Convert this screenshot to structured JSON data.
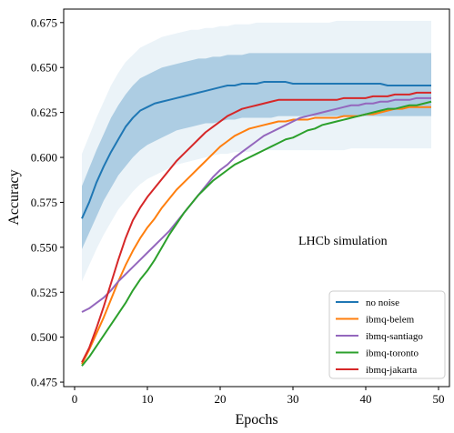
{
  "chart_data": {
    "type": "line",
    "xlabel": "Epochs",
    "ylabel": "Accuracy",
    "annotation": "LHCb simulation",
    "xlim": [
      -1.5,
      51.5
    ],
    "ylim": [
      0.4725,
      0.6825
    ],
    "xticks": [
      0,
      10,
      20,
      30,
      40,
      50
    ],
    "yticks": [
      0.475,
      0.5,
      0.525,
      0.55,
      0.575,
      0.6,
      0.625,
      0.65,
      0.675
    ],
    "ytick_labels": [
      "0.475",
      "0.500",
      "0.525",
      "0.550",
      "0.575",
      "0.600",
      "0.625",
      "0.650",
      "0.675"
    ],
    "legend_position": "lower-right",
    "x": [
      1,
      2,
      3,
      4,
      5,
      6,
      7,
      8,
      9,
      10,
      11,
      12,
      13,
      14,
      15,
      16,
      17,
      18,
      19,
      20,
      21,
      22,
      23,
      24,
      25,
      26,
      27,
      28,
      29,
      30,
      31,
      32,
      33,
      34,
      35,
      36,
      37,
      38,
      39,
      40,
      41,
      42,
      43,
      44,
      45,
      46,
      47,
      48,
      49
    ],
    "series": [
      {
        "name": "no noise",
        "color": "#1f77b4",
        "values": [
          0.566,
          0.575,
          0.586,
          0.595,
          0.603,
          0.61,
          0.617,
          0.622,
          0.626,
          0.628,
          0.63,
          0.631,
          0.632,
          0.633,
          0.634,
          0.635,
          0.636,
          0.637,
          0.638,
          0.639,
          0.64,
          0.64,
          0.641,
          0.641,
          0.641,
          0.642,
          0.642,
          0.642,
          0.642,
          0.641,
          0.641,
          0.641,
          0.641,
          0.641,
          0.641,
          0.641,
          0.641,
          0.641,
          0.641,
          0.641,
          0.641,
          0.641,
          0.64,
          0.64,
          0.64,
          0.64,
          0.64,
          0.64,
          0.64
        ],
        "band_inner": {
          "lower": [
            0.549,
            0.558,
            0.567,
            0.576,
            0.583,
            0.59,
            0.595,
            0.6,
            0.604,
            0.607,
            0.609,
            0.611,
            0.613,
            0.615,
            0.616,
            0.617,
            0.618,
            0.619,
            0.619,
            0.62,
            0.621,
            0.621,
            0.622,
            0.622,
            0.622,
            0.622,
            0.622,
            0.623,
            0.623,
            0.623,
            0.623,
            0.623,
            0.623,
            0.623,
            0.623,
            0.623,
            0.623,
            0.623,
            0.623,
            0.623,
            0.623,
            0.623,
            0.623,
            0.623,
            0.623,
            0.623,
            0.623,
            0.623,
            0.623
          ],
          "upper": [
            0.584,
            0.594,
            0.604,
            0.613,
            0.622,
            0.629,
            0.635,
            0.64,
            0.644,
            0.646,
            0.648,
            0.65,
            0.651,
            0.652,
            0.653,
            0.654,
            0.655,
            0.655,
            0.656,
            0.656,
            0.657,
            0.657,
            0.657,
            0.658,
            0.658,
            0.658,
            0.658,
            0.658,
            0.658,
            0.658,
            0.658,
            0.658,
            0.658,
            0.658,
            0.658,
            0.658,
            0.658,
            0.658,
            0.658,
            0.658,
            0.658,
            0.658,
            0.658,
            0.658,
            0.658,
            0.658,
            0.658,
            0.658,
            0.658
          ]
        },
        "band_outer": {
          "lower": [
            0.531,
            0.54,
            0.549,
            0.557,
            0.564,
            0.571,
            0.576,
            0.581,
            0.585,
            0.588,
            0.59,
            0.592,
            0.594,
            0.596,
            0.597,
            0.598,
            0.599,
            0.6,
            0.601,
            0.602,
            0.602,
            0.603,
            0.603,
            0.603,
            0.604,
            0.604,
            0.604,
            0.604,
            0.604,
            0.604,
            0.604,
            0.604,
            0.604,
            0.604,
            0.604,
            0.604,
            0.604,
            0.605,
            0.605,
            0.605,
            0.605,
            0.605,
            0.605,
            0.605,
            0.605,
            0.605,
            0.605,
            0.605,
            0.605
          ],
          "upper": [
            0.602,
            0.612,
            0.622,
            0.631,
            0.64,
            0.647,
            0.653,
            0.657,
            0.661,
            0.663,
            0.665,
            0.667,
            0.668,
            0.669,
            0.67,
            0.671,
            0.671,
            0.672,
            0.672,
            0.673,
            0.673,
            0.674,
            0.674,
            0.674,
            0.675,
            0.675,
            0.675,
            0.675,
            0.675,
            0.675,
            0.675,
            0.675,
            0.675,
            0.675,
            0.675,
            0.676,
            0.676,
            0.676,
            0.676,
            0.676,
            0.676,
            0.676,
            0.676,
            0.676,
            0.676,
            0.676,
            0.676,
            0.676,
            0.676
          ]
        }
      },
      {
        "name": "ibmq-belem",
        "color": "#ff7f0e",
        "values": [
          0.485,
          0.493,
          0.502,
          0.511,
          0.521,
          0.531,
          0.54,
          0.548,
          0.555,
          0.561,
          0.566,
          0.572,
          0.577,
          0.582,
          0.586,
          0.59,
          0.594,
          0.598,
          0.602,
          0.606,
          0.609,
          0.612,
          0.614,
          0.616,
          0.617,
          0.618,
          0.619,
          0.62,
          0.62,
          0.621,
          0.621,
          0.621,
          0.622,
          0.622,
          0.622,
          0.622,
          0.623,
          0.623,
          0.623,
          0.624,
          0.624,
          0.625,
          0.626,
          0.627,
          0.627,
          0.628,
          0.628,
          0.628,
          0.628
        ]
      },
      {
        "name": "ibmq-santiago",
        "color": "#9467bd",
        "values": [
          0.514,
          0.516,
          0.519,
          0.522,
          0.526,
          0.531,
          0.535,
          0.539,
          0.543,
          0.547,
          0.551,
          0.555,
          0.559,
          0.564,
          0.569,
          0.574,
          0.579,
          0.584,
          0.589,
          0.593,
          0.596,
          0.6,
          0.603,
          0.606,
          0.609,
          0.612,
          0.614,
          0.616,
          0.618,
          0.62,
          0.622,
          0.623,
          0.624,
          0.625,
          0.626,
          0.627,
          0.628,
          0.629,
          0.629,
          0.63,
          0.63,
          0.631,
          0.631,
          0.632,
          0.632,
          0.632,
          0.633,
          0.633,
          0.633
        ]
      },
      {
        "name": "ibmq-toronto",
        "color": "#2ca02c",
        "values": [
          0.484,
          0.489,
          0.495,
          0.501,
          0.507,
          0.513,
          0.519,
          0.526,
          0.532,
          0.537,
          0.543,
          0.55,
          0.557,
          0.563,
          0.569,
          0.574,
          0.579,
          0.583,
          0.587,
          0.59,
          0.593,
          0.596,
          0.598,
          0.6,
          0.602,
          0.604,
          0.606,
          0.608,
          0.61,
          0.611,
          0.613,
          0.615,
          0.616,
          0.618,
          0.619,
          0.62,
          0.621,
          0.622,
          0.623,
          0.624,
          0.625,
          0.626,
          0.627,
          0.627,
          0.628,
          0.629,
          0.629,
          0.63,
          0.631
        ]
      },
      {
        "name": "ibmq-jakarta",
        "color": "#d62728",
        "values": [
          0.486,
          0.494,
          0.505,
          0.517,
          0.53,
          0.543,
          0.555,
          0.565,
          0.572,
          0.578,
          0.583,
          0.588,
          0.593,
          0.598,
          0.602,
          0.606,
          0.61,
          0.614,
          0.617,
          0.62,
          0.623,
          0.625,
          0.627,
          0.628,
          0.629,
          0.63,
          0.631,
          0.632,
          0.632,
          0.632,
          0.632,
          0.632,
          0.632,
          0.632,
          0.632,
          0.632,
          0.633,
          0.633,
          0.633,
          0.633,
          0.634,
          0.634,
          0.634,
          0.635,
          0.635,
          0.635,
          0.636,
          0.636,
          0.636
        ]
      }
    ]
  }
}
